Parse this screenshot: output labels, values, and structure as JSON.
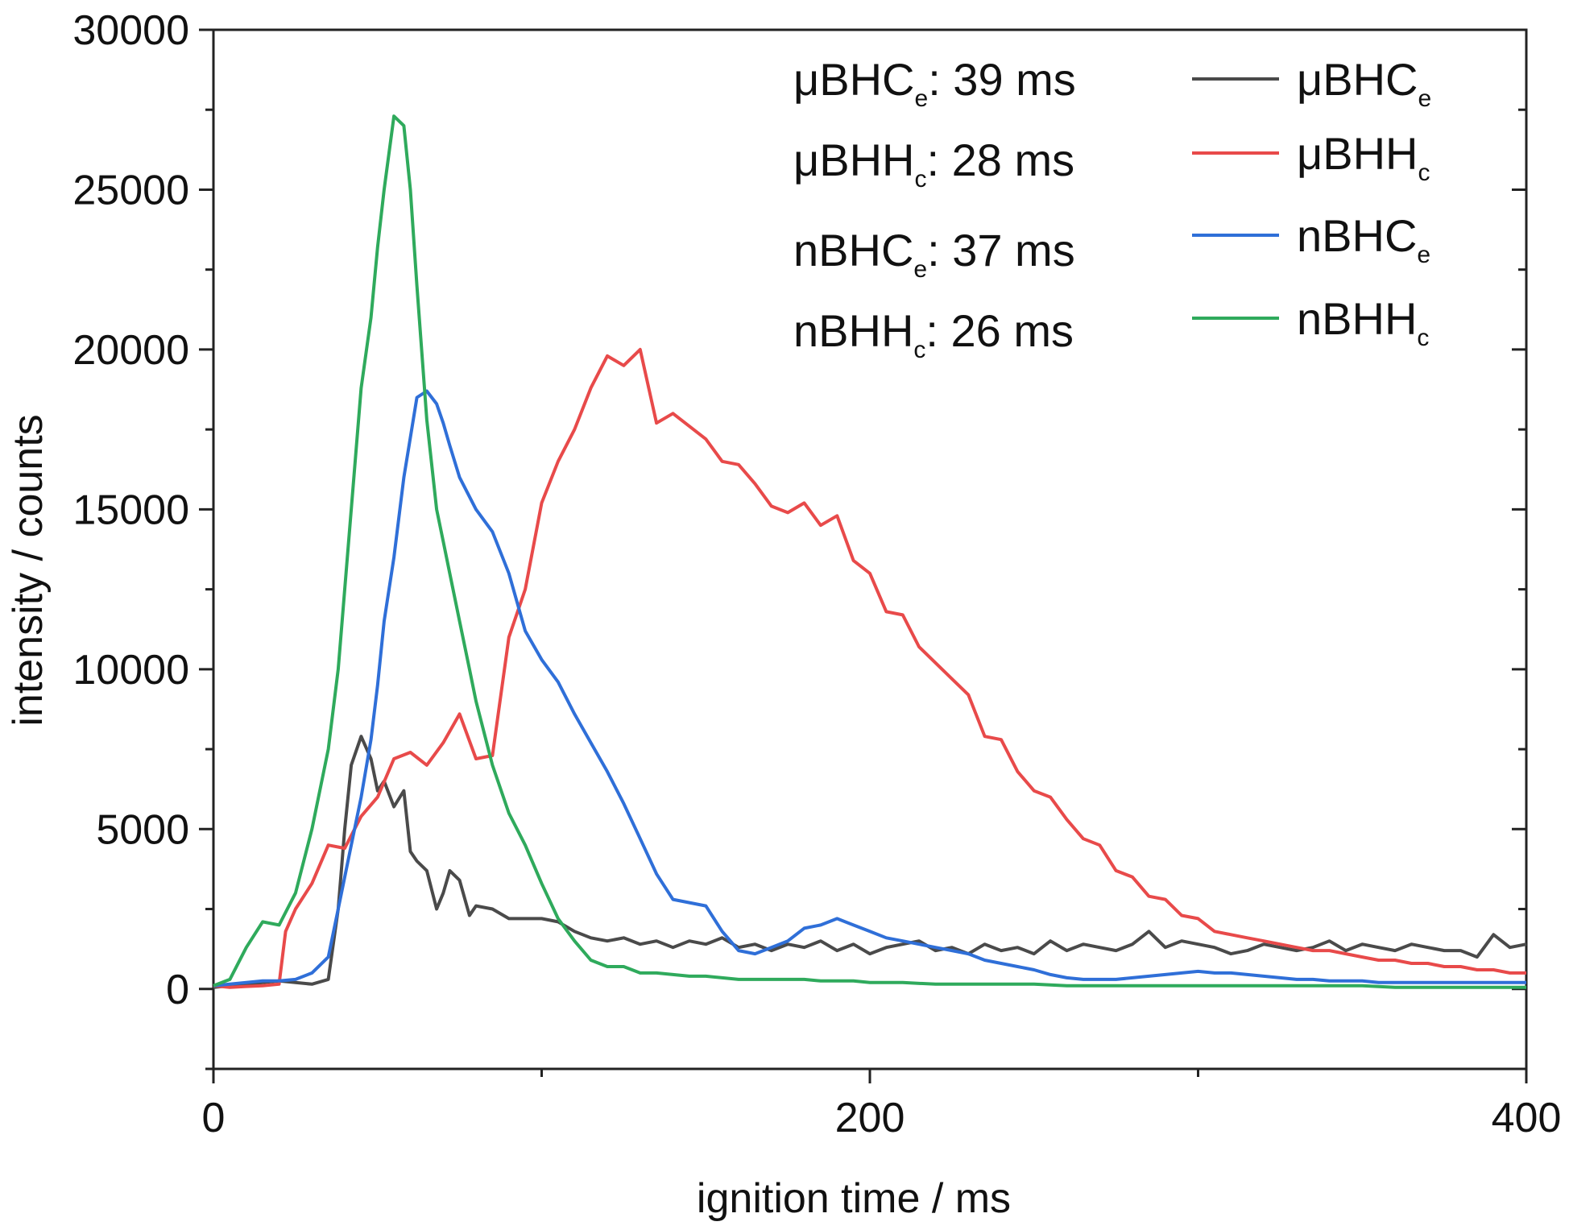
{
  "chart_data": {
    "type": "line",
    "xlabel": "ignition time / ms",
    "ylabel": "intensity / counts",
    "xlim": [
      0,
      400
    ],
    "ylim": [
      -2500,
      30000
    ],
    "x_ticks": [
      0,
      200,
      400
    ],
    "x_tick_labels": [
      "0",
      "200",
      "400"
    ],
    "x_minor_ticks": [
      100,
      300
    ],
    "y_ticks": [
      0,
      5000,
      10000,
      15000,
      20000,
      25000,
      30000
    ],
    "y_tick_labels": [
      "0",
      "5000",
      "10000",
      "15000",
      "20000",
      "25000",
      "30000"
    ],
    "y_minor_ticks": [
      -2500,
      2500,
      7500,
      12500,
      17500,
      22500,
      27500
    ],
    "grid": false,
    "legend_position": "top-right",
    "annotations": [
      {
        "base": "μBHC",
        "sub": "e",
        "text": ": 39 ms"
      },
      {
        "base": "μBHH",
        "sub": "c",
        "text": ": 28 ms"
      },
      {
        "base": "nBHC",
        "sub": "e",
        "text": ": 37 ms"
      },
      {
        "base": "nBHH",
        "sub": "c",
        "text": ": 26 ms"
      }
    ],
    "series": [
      {
        "name": "μBHC",
        "name_sub": "e",
        "color": "#4a4a4a",
        "x": [
          0,
          5,
          10,
          15,
          20,
          25,
          30,
          35,
          38,
          40,
          42,
          45,
          48,
          50,
          52,
          55,
          58,
          60,
          62,
          65,
          68,
          70,
          72,
          75,
          78,
          80,
          85,
          90,
          95,
          100,
          105,
          110,
          115,
          120,
          125,
          130,
          135,
          140,
          145,
          150,
          155,
          160,
          165,
          170,
          175,
          180,
          185,
          190,
          195,
          200,
          205,
          210,
          215,
          220,
          225,
          230,
          235,
          240,
          245,
          250,
          255,
          260,
          265,
          270,
          275,
          280,
          285,
          290,
          295,
          300,
          305,
          310,
          315,
          320,
          325,
          330,
          335,
          340,
          345,
          350,
          355,
          360,
          365,
          370,
          375,
          380,
          385,
          390,
          395,
          400
        ],
        "y": [
          50,
          100,
          150,
          200,
          250,
          200,
          150,
          300,
          2500,
          5000,
          7000,
          7900,
          7200,
          6200,
          6500,
          5700,
          6200,
          4300,
          4000,
          3700,
          2500,
          3000,
          3700,
          3400,
          2300,
          2600,
          2500,
          2200,
          2200,
          2200,
          2100,
          1800,
          1600,
          1500,
          1600,
          1400,
          1500,
          1300,
          1500,
          1400,
          1600,
          1300,
          1400,
          1200,
          1400,
          1300,
          1500,
          1200,
          1400,
          1100,
          1300,
          1400,
          1500,
          1200,
          1300,
          1100,
          1400,
          1200,
          1300,
          1100,
          1500,
          1200,
          1400,
          1300,
          1200,
          1400,
          1800,
          1300,
          1500,
          1400,
          1300,
          1100,
          1200,
          1400,
          1300,
          1200,
          1300,
          1500,
          1200,
          1400,
          1300,
          1200,
          1400,
          1300,
          1200,
          1200,
          1000,
          1700,
          1300,
          1400
        ]
      },
      {
        "name": "μBHH",
        "name_sub": "c",
        "color": "#e84a4a",
        "x": [
          0,
          5,
          10,
          15,
          20,
          22,
          25,
          30,
          35,
          40,
          45,
          50,
          55,
          60,
          65,
          70,
          75,
          80,
          85,
          90,
          95,
          100,
          105,
          110,
          115,
          120,
          125,
          130,
          135,
          140,
          145,
          150,
          155,
          160,
          165,
          170,
          175,
          180,
          185,
          190,
          195,
          200,
          205,
          210,
          215,
          220,
          225,
          230,
          235,
          240,
          245,
          250,
          255,
          260,
          265,
          270,
          275,
          280,
          285,
          290,
          295,
          300,
          305,
          310,
          315,
          320,
          325,
          330,
          335,
          340,
          345,
          350,
          355,
          360,
          365,
          370,
          375,
          380,
          385,
          390,
          395,
          400
        ],
        "y": [
          100,
          50,
          80,
          100,
          150,
          1800,
          2500,
          3300,
          4500,
          4400,
          5400,
          6000,
          7200,
          7400,
          7000,
          7700,
          8600,
          7200,
          7300,
          11000,
          12500,
          15200,
          16500,
          17500,
          18800,
          19800,
          19500,
          20000,
          17700,
          18000,
          17600,
          17200,
          16500,
          16400,
          15800,
          15100,
          14900,
          15200,
          14500,
          14800,
          13400,
          13000,
          11800,
          11700,
          10700,
          10200,
          9700,
          9200,
          7900,
          7800,
          6800,
          6200,
          6000,
          5300,
          4700,
          4500,
          3700,
          3500,
          2900,
          2800,
          2300,
          2200,
          1800,
          1700,
          1600,
          1500,
          1400,
          1300,
          1200,
          1200,
          1100,
          1000,
          900,
          900,
          800,
          800,
          700,
          700,
          600,
          600,
          500,
          500
        ]
      },
      {
        "name": "nBHC",
        "name_sub": "e",
        "color": "#2f6fd8",
        "x": [
          0,
          5,
          10,
          15,
          20,
          25,
          30,
          35,
          38,
          40,
          42,
          45,
          48,
          50,
          52,
          55,
          58,
          62,
          65,
          68,
          70,
          72,
          75,
          80,
          85,
          90,
          95,
          100,
          105,
          110,
          115,
          120,
          125,
          130,
          135,
          140,
          145,
          150,
          155,
          160,
          165,
          170,
          175,
          180,
          185,
          190,
          195,
          200,
          205,
          210,
          215,
          220,
          225,
          230,
          235,
          240,
          245,
          250,
          255,
          260,
          265,
          270,
          275,
          280,
          285,
          290,
          295,
          300,
          305,
          310,
          315,
          320,
          325,
          330,
          335,
          340,
          345,
          350,
          355,
          360,
          365,
          370,
          375,
          380,
          385,
          390,
          395,
          400
        ],
        "y": [
          100,
          150,
          200,
          250,
          250,
          300,
          500,
          1000,
          2500,
          3500,
          4500,
          6000,
          7800,
          9500,
          11500,
          13500,
          16000,
          18500,
          18700,
          18300,
          17700,
          17000,
          16000,
          15000,
          14300,
          13000,
          11200,
          10300,
          9600,
          8600,
          7700,
          6800,
          5800,
          4700,
          3600,
          2800,
          2700,
          2600,
          1800,
          1200,
          1100,
          1300,
          1500,
          1900,
          2000,
          2200,
          2000,
          1800,
          1600,
          1500,
          1400,
          1300,
          1200,
          1100,
          900,
          800,
          700,
          600,
          450,
          350,
          300,
          300,
          300,
          350,
          400,
          450,
          500,
          550,
          500,
          500,
          450,
          400,
          350,
          300,
          300,
          250,
          250,
          250,
          200,
          200,
          200,
          200,
          200,
          200,
          200,
          200,
          200,
          200
        ]
      },
      {
        "name": "nBHH",
        "name_sub": "c",
        "color": "#2faa5c",
        "x": [
          0,
          5,
          10,
          15,
          20,
          25,
          30,
          35,
          38,
          40,
          42,
          45,
          48,
          50,
          52,
          55,
          58,
          60,
          62,
          65,
          68,
          70,
          72,
          75,
          78,
          80,
          85,
          90,
          95,
          100,
          105,
          110,
          115,
          120,
          125,
          130,
          135,
          140,
          145,
          150,
          155,
          160,
          165,
          170,
          175,
          180,
          185,
          190,
          195,
          200,
          210,
          220,
          230,
          240,
          250,
          260,
          270,
          280,
          290,
          300,
          310,
          320,
          330,
          340,
          350,
          360,
          370,
          380,
          390,
          400
        ],
        "y": [
          100,
          300,
          1300,
          2100,
          2000,
          3000,
          5000,
          7500,
          10000,
          12500,
          15000,
          18800,
          21000,
          23200,
          25000,
          27300,
          27000,
          25000,
          22000,
          17800,
          15000,
          14000,
          13000,
          11500,
          10000,
          9000,
          7000,
          5500,
          4500,
          3300,
          2200,
          1500,
          900,
          700,
          700,
          500,
          500,
          450,
          400,
          400,
          350,
          300,
          300,
          300,
          300,
          300,
          250,
          250,
          250,
          200,
          200,
          150,
          150,
          150,
          150,
          100,
          100,
          100,
          100,
          100,
          100,
          100,
          100,
          100,
          100,
          50,
          50,
          50,
          50,
          50
        ]
      }
    ]
  }
}
